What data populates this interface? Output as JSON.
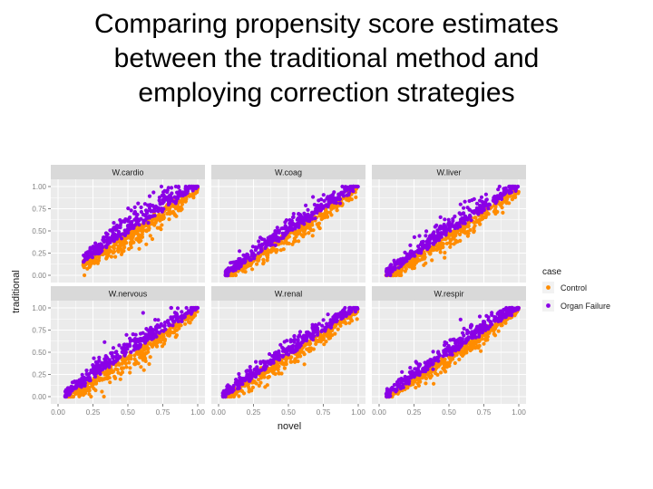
{
  "slide": {
    "title": "Comparing propensity score estimates\nbetween the traditional method and\nemploying correction strategies"
  },
  "chart_data": {
    "type": "scatter",
    "xlabel": "novel",
    "ylabel": "traditional",
    "xlim": [
      0,
      1
    ],
    "ylim": [
      0,
      1
    ],
    "x_ticks": [
      "0.00",
      "0.25",
      "0.50",
      "0.75",
      "1.00"
    ],
    "y_ticks": [
      "0.00",
      "0.25",
      "0.50",
      "0.75",
      "1.00"
    ],
    "grid": true,
    "panel_background": "#ebebeb",
    "strip_background": "#d9d9d9",
    "legend": {
      "title": "case",
      "placement": "right",
      "entries": [
        {
          "label": "Control",
          "color": "#ff8c00"
        },
        {
          "label": "Organ Failure",
          "color": "#8a00e6"
        }
      ]
    },
    "panels": [
      {
        "name": "W.cardio",
        "x_range": [
          0.18,
          1.0
        ],
        "y_range": [
          0.15,
          1.0
        ],
        "spread": 0.09
      },
      {
        "name": "W.coag",
        "x_range": [
          0.05,
          1.0
        ],
        "y_range": [
          0.0,
          1.0
        ],
        "spread": 0.07
      },
      {
        "name": "W.liver",
        "x_range": [
          0.05,
          1.0
        ],
        "y_range": [
          0.0,
          1.0
        ],
        "spread": 0.08
      },
      {
        "name": "W.nervous",
        "x_range": [
          0.05,
          1.0
        ],
        "y_range": [
          0.0,
          1.0
        ],
        "spread": 0.09
      },
      {
        "name": "W.renal",
        "x_range": [
          0.03,
          1.0
        ],
        "y_range": [
          0.0,
          1.0
        ],
        "spread": 0.07
      },
      {
        "name": "W.respir",
        "x_range": [
          0.05,
          1.0
        ],
        "y_range": [
          0.0,
          1.0
        ],
        "spread": 0.07
      }
    ]
  }
}
